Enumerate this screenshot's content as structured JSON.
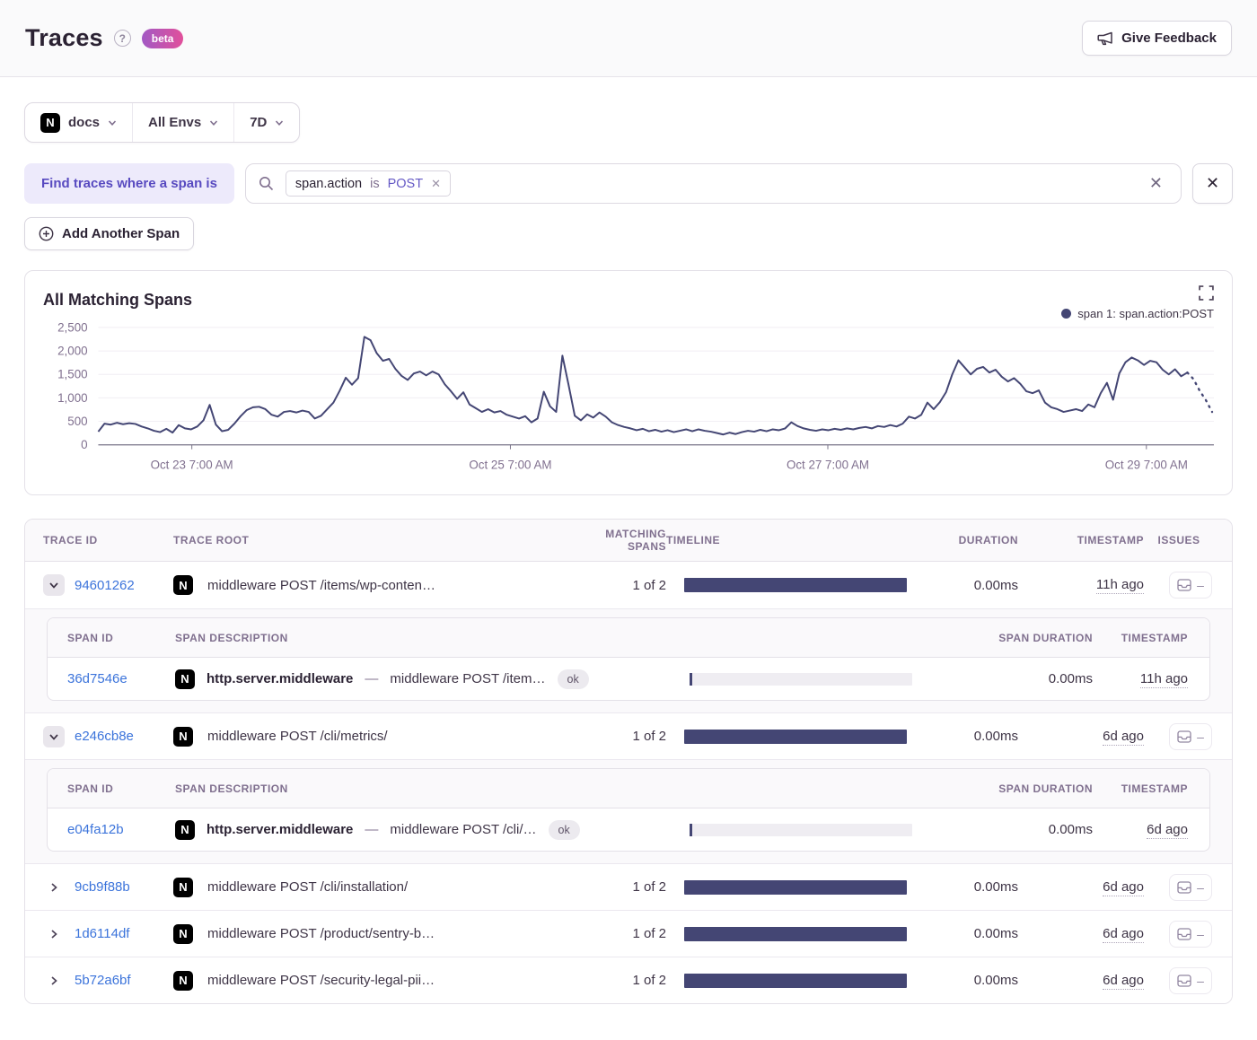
{
  "header": {
    "title": "Traces",
    "beta_label": "beta",
    "feedback_label": "Give Feedback"
  },
  "filters": {
    "project": "docs",
    "environment": "All Envs",
    "period": "7D"
  },
  "search": {
    "where_label": "Find traces where a span is",
    "token": {
      "key": "span.action",
      "op": "is",
      "value": "POST"
    },
    "add_span_label": "Add Another Span"
  },
  "chart": {
    "title": "All Matching Spans",
    "legend_label": "span 1: span.action:POST"
  },
  "chart_data": {
    "type": "line",
    "title": "All Matching Spans",
    "ylim": [
      0,
      2500
    ],
    "y_ticks": [
      0,
      500,
      1000,
      1500,
      2000,
      2500
    ],
    "y_tick_labels": [
      "0",
      "500",
      "1,000",
      "1,500",
      "2,000",
      "2,500"
    ],
    "x_ticks": [
      {
        "f": 0.084,
        "label": "Oct 23 7:00 AM"
      },
      {
        "f": 0.37,
        "label": "Oct 25 7:00 AM"
      },
      {
        "f": 0.655,
        "label": "Oct 27 7:00 AM"
      },
      {
        "f": 0.941,
        "label": "Oct 29 7:00 AM"
      }
    ],
    "grid": true,
    "legend_position": "top-right",
    "series": [
      {
        "name": "span 1: span.action:POST",
        "color": "#444674",
        "dashed_from": 176,
        "values": [
          280,
          450,
          430,
          470,
          440,
          460,
          445,
          390,
          350,
          300,
          270,
          340,
          260,
          420,
          350,
          330,
          390,
          520,
          850,
          430,
          290,
          320,
          450,
          610,
          740,
          800,
          810,
          760,
          640,
          600,
          700,
          720,
          690,
          730,
          700,
          560,
          620,
          760,
          900,
          1150,
          1430,
          1280,
          1420,
          2300,
          2230,
          1950,
          1790,
          1830,
          1620,
          1470,
          1380,
          1520,
          1560,
          1480,
          1560,
          1500,
          1290,
          1140,
          980,
          1120,
          860,
          780,
          700,
          760,
          690,
          720,
          640,
          600,
          560,
          610,
          480,
          560,
          1130,
          820,
          700,
          1900,
          1280,
          620,
          520,
          650,
          580,
          690,
          600,
          480,
          420,
          380,
          350,
          310,
          340,
          290,
          320,
          280,
          310,
          270,
          300,
          330,
          290,
          330,
          300,
          280,
          250,
          220,
          260,
          230,
          270,
          300,
          280,
          320,
          290,
          330,
          310,
          350,
          480,
          400,
          350,
          320,
          300,
          330,
          310,
          340,
          320,
          350,
          330,
          360,
          380,
          350,
          400,
          380,
          420,
          390,
          450,
          600,
          560,
          640,
          900,
          760,
          910,
          1120,
          1500,
          1800,
          1650,
          1500,
          1620,
          1660,
          1540,
          1600,
          1450,
          1350,
          1420,
          1300,
          1140,
          1100,
          1160,
          900,
          800,
          760,
          700,
          730,
          760,
          720,
          860,
          800,
          1100,
          1320,
          960,
          1520,
          1760,
          1860,
          1800,
          1700,
          1790,
          1760,
          1600,
          1500,
          1610,
          1460,
          1540,
          1400,
          1150,
          950,
          700
        ]
      }
    ]
  },
  "table": {
    "columns": [
      "Trace ID",
      "Trace Root",
      "Matching Spans",
      "Timeline",
      "Duration",
      "Timestamp",
      "Issues"
    ],
    "span_columns": [
      "Span ID",
      "Span Description",
      "Span Duration",
      "Timestamp"
    ],
    "rows": [
      {
        "id": "94601262",
        "root": "middleware POST /items/wp-conten…",
        "matching": "1 of 2",
        "duration": "0.00ms",
        "timestamp": "11h ago",
        "expanded": true,
        "spans": [
          {
            "id": "36d7546e",
            "op": "http.server.middleware",
            "desc": "middleware POST /item…",
            "status": "ok",
            "duration": "0.00ms",
            "timestamp": "11h ago"
          }
        ]
      },
      {
        "id": "e246cb8e",
        "root": "middleware POST /cli/metrics/",
        "matching": "1 of 2",
        "duration": "0.00ms",
        "timestamp": "6d ago",
        "expanded": true,
        "spans": [
          {
            "id": "e04fa12b",
            "op": "http.server.middleware",
            "desc": "middleware POST /cli/…",
            "status": "ok",
            "duration": "0.00ms",
            "timestamp": "6d ago"
          }
        ]
      },
      {
        "id": "9cb9f88b",
        "root": "middleware POST /cli/installation/",
        "matching": "1 of 2",
        "duration": "0.00ms",
        "timestamp": "6d ago",
        "expanded": false,
        "spans": []
      },
      {
        "id": "1d6114df",
        "root": "middleware POST /product/sentry-b…",
        "matching": "1 of 2",
        "duration": "0.00ms",
        "timestamp": "6d ago",
        "expanded": false,
        "spans": []
      },
      {
        "id": "5b72a6bf",
        "root": "middleware POST /security-legal-pii…",
        "matching": "1 of 2",
        "duration": "0.00ms",
        "timestamp": "6d ago",
        "expanded": false,
        "spans": []
      }
    ]
  }
}
